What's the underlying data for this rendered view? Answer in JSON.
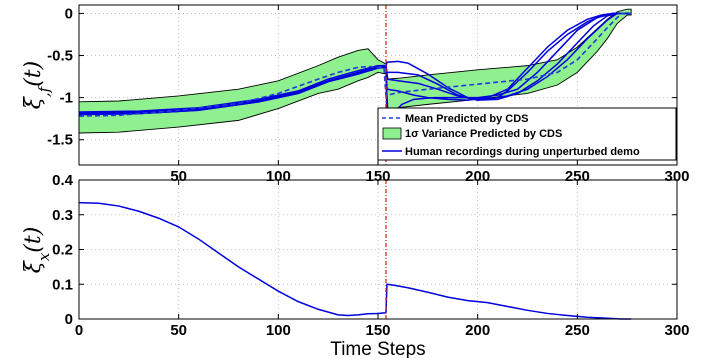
{
  "colors": {
    "mean": "#1f3bd6",
    "variance_fill": "#8ff08f",
    "human": "#0000dd",
    "perturbation_line": "#e0281e"
  },
  "chart_data": [
    {
      "type": "line",
      "position": "top",
      "ylabel": "ξ,f(t)",
      "xlabel": "",
      "xlim": [
        0,
        300
      ],
      "ylim": [
        -1.8,
        0.1
      ],
      "xticks": [
        50,
        100,
        150,
        200,
        250,
        300
      ],
      "yticks": [
        0,
        -0.5,
        -1,
        -1.5
      ],
      "ytick_labels": [
        "0",
        "-0.5",
        "-1",
        "-1.5"
      ],
      "grid": true,
      "legend_position": "bottom-right",
      "perturbation_x": 154,
      "mean": {
        "name": "Mean Predicted by CDS",
        "x": [
          0,
          20,
          50,
          80,
          100,
          120,
          130,
          140,
          145,
          150,
          153,
          154,
          155,
          160,
          175,
          200,
          225,
          240,
          250,
          260,
          265,
          270,
          272,
          277
        ],
        "y": [
          -1.22,
          -1.21,
          -1.15,
          -1.07,
          -0.95,
          -0.78,
          -0.7,
          -0.64,
          -0.63,
          -0.64,
          -0.64,
          -0.98,
          -0.97,
          -0.94,
          -0.9,
          -0.84,
          -0.78,
          -0.7,
          -0.55,
          -0.3,
          -0.17,
          -0.05,
          0,
          0
        ]
      },
      "variance": {
        "name": "1σ Variance Predicted by CDS",
        "x": [
          0,
          20,
          50,
          80,
          100,
          120,
          130,
          140,
          145,
          150,
          154,
          155,
          160,
          175,
          200,
          225,
          240,
          250,
          260,
          265,
          270,
          275,
          277
        ],
        "upper": [
          -1.05,
          -1.04,
          -0.98,
          -0.9,
          -0.8,
          -0.62,
          -0.52,
          -0.44,
          -0.42,
          -0.55,
          -0.6,
          -0.78,
          -0.77,
          -0.73,
          -0.67,
          -0.62,
          -0.55,
          -0.4,
          -0.18,
          -0.07,
          0.02,
          0.05,
          0.05
        ],
        "lower": [
          -1.42,
          -1.41,
          -1.35,
          -1.27,
          -1.13,
          -0.95,
          -0.9,
          -0.8,
          -0.76,
          -0.7,
          -0.72,
          -1.15,
          -1.12,
          -1.08,
          -1.02,
          -0.95,
          -0.85,
          -0.7,
          -0.45,
          -0.3,
          -0.12,
          -0.02,
          -0.02
        ]
      },
      "human": {
        "name": "Human recordings during unperturbed demo",
        "curves": [
          {
            "x": [
              0,
              30,
              60,
              90,
              110,
              125,
              140,
              150,
              154,
              154.5,
              160,
              165,
              175,
              185,
              195,
              200,
              205,
              215,
              225,
              235,
              245,
              255,
              265,
              270,
              277
            ],
            "y": [
              -1.17,
              -1.16,
              -1.12,
              -1.02,
              -0.92,
              -0.78,
              -0.68,
              -0.62,
              -0.62,
              -0.58,
              -0.57,
              -0.59,
              -0.72,
              -0.88,
              -1.0,
              -1.02,
              -1.02,
              -0.98,
              -0.9,
              -0.75,
              -0.55,
              -0.3,
              -0.08,
              0,
              0
            ]
          },
          {
            "x": [
              0,
              30,
              60,
              90,
              110,
              125,
              140,
              150,
              154,
              154.5,
              160,
              170,
              180,
              190,
              200,
              210,
              220,
              230,
              240,
              250,
              258,
              265,
              270,
              277
            ],
            "y": [
              -1.18,
              -1.17,
              -1.13,
              -1.03,
              -0.93,
              -0.8,
              -0.7,
              -0.63,
              -0.62,
              -0.7,
              -0.7,
              -0.73,
              -0.84,
              -0.97,
              -1.03,
              -1.02,
              -0.95,
              -0.8,
              -0.6,
              -0.35,
              -0.15,
              -0.03,
              0,
              0
            ]
          },
          {
            "x": [
              0,
              30,
              60,
              90,
              110,
              125,
              140,
              150,
              154,
              154.5,
              160,
              170,
              180,
              190,
              200,
              210,
              215,
              225,
              235,
              245,
              255,
              263,
              268,
              277
            ],
            "y": [
              -1.19,
              -1.18,
              -1.14,
              -1.04,
              -0.94,
              -0.8,
              -0.71,
              -0.64,
              -0.63,
              -0.78,
              -0.8,
              -0.83,
              -0.9,
              -0.98,
              -1.03,
              -1.0,
              -0.92,
              -0.7,
              -0.45,
              -0.25,
              -0.1,
              -0.02,
              0,
              0
            ]
          },
          {
            "x": [
              0,
              30,
              60,
              90,
              110,
              125,
              140,
              150,
              154,
              154.5,
              160,
              168,
              175,
              185,
              195,
              205,
              215,
              225,
              235,
              245,
              255,
              262,
              268,
              277
            ],
            "y": [
              -1.2,
              -1.19,
              -1.15,
              -1.05,
              -0.95,
              -0.81,
              -0.72,
              -0.64,
              -0.63,
              -0.9,
              -0.92,
              -0.97,
              -1.0,
              -1.02,
              -1.03,
              -1.0,
              -0.9,
              -0.65,
              -0.4,
              -0.2,
              -0.07,
              -0.02,
              0,
              0
            ]
          },
          {
            "x": [
              0,
              30,
              60,
              90,
              110,
              125,
              140,
              150,
              154,
              154.5,
              158,
              162,
              168,
              178,
              188,
              200,
              210,
              220,
              230,
              240,
              250,
              260,
              268,
              277
            ],
            "y": [
              -1.2,
              -1.19,
              -1.15,
              -1.05,
              -0.95,
              -0.81,
              -0.72,
              -0.65,
              -0.64,
              -1.3,
              -1.18,
              -1.08,
              -1.02,
              -1.0,
              -1.0,
              -1.0,
              -0.97,
              -0.9,
              -0.7,
              -0.45,
              -0.2,
              -0.05,
              0,
              0
            ]
          }
        ]
      }
    },
    {
      "type": "line",
      "position": "bottom",
      "ylabel": "ξx(t)",
      "xlabel": "Time Steps",
      "xlim": [
        0,
        300
      ],
      "ylim": [
        0,
        0.4
      ],
      "xticks": [
        0,
        50,
        100,
        150,
        200,
        250,
        300
      ],
      "yticks": [
        0,
        0.1,
        0.2,
        0.3,
        0.4
      ],
      "ytick_labels": [
        "0",
        "0.1",
        "0.2",
        "0.3",
        "0.4"
      ],
      "grid": true,
      "perturbation_x": 154,
      "series": [
        {
          "x": [
            0,
            10,
            20,
            30,
            40,
            50,
            60,
            70,
            80,
            90,
            100,
            110,
            120,
            130,
            135,
            140,
            145,
            150,
            154,
            154.5,
            158,
            165,
            175,
            185,
            195,
            205,
            215,
            225,
            235,
            245,
            255,
            265,
            272,
            277
          ],
          "y": [
            0.335,
            0.333,
            0.325,
            0.31,
            0.29,
            0.265,
            0.23,
            0.19,
            0.15,
            0.115,
            0.08,
            0.05,
            0.028,
            0.012,
            0.01,
            0.012,
            0.015,
            0.016,
            0.018,
            0.1,
            0.097,
            0.09,
            0.077,
            0.063,
            0.053,
            0.047,
            0.036,
            0.025,
            0.016,
            0.01,
            0.005,
            0.002,
            0.0,
            0.0
          ]
        }
      ]
    }
  ],
  "ylabel_top_main": "ξ",
  "ylabel_top_sub": ",f",
  "ylabel_top_arg": "(t)",
  "ylabel_bottom_main": "ξ",
  "ylabel_bottom_sub": "x",
  "ylabel_bottom_arg": "(t)",
  "xlabel_bottom": "Time Steps",
  "legend": {
    "mean_label": "Mean Predicted by CDS",
    "variance_label_prefix": "1",
    "variance_label_sigma": "σ",
    "variance_label_rest": " Variance Predicted by CDS",
    "human_label": "Human recordings during unperturbed demo"
  }
}
